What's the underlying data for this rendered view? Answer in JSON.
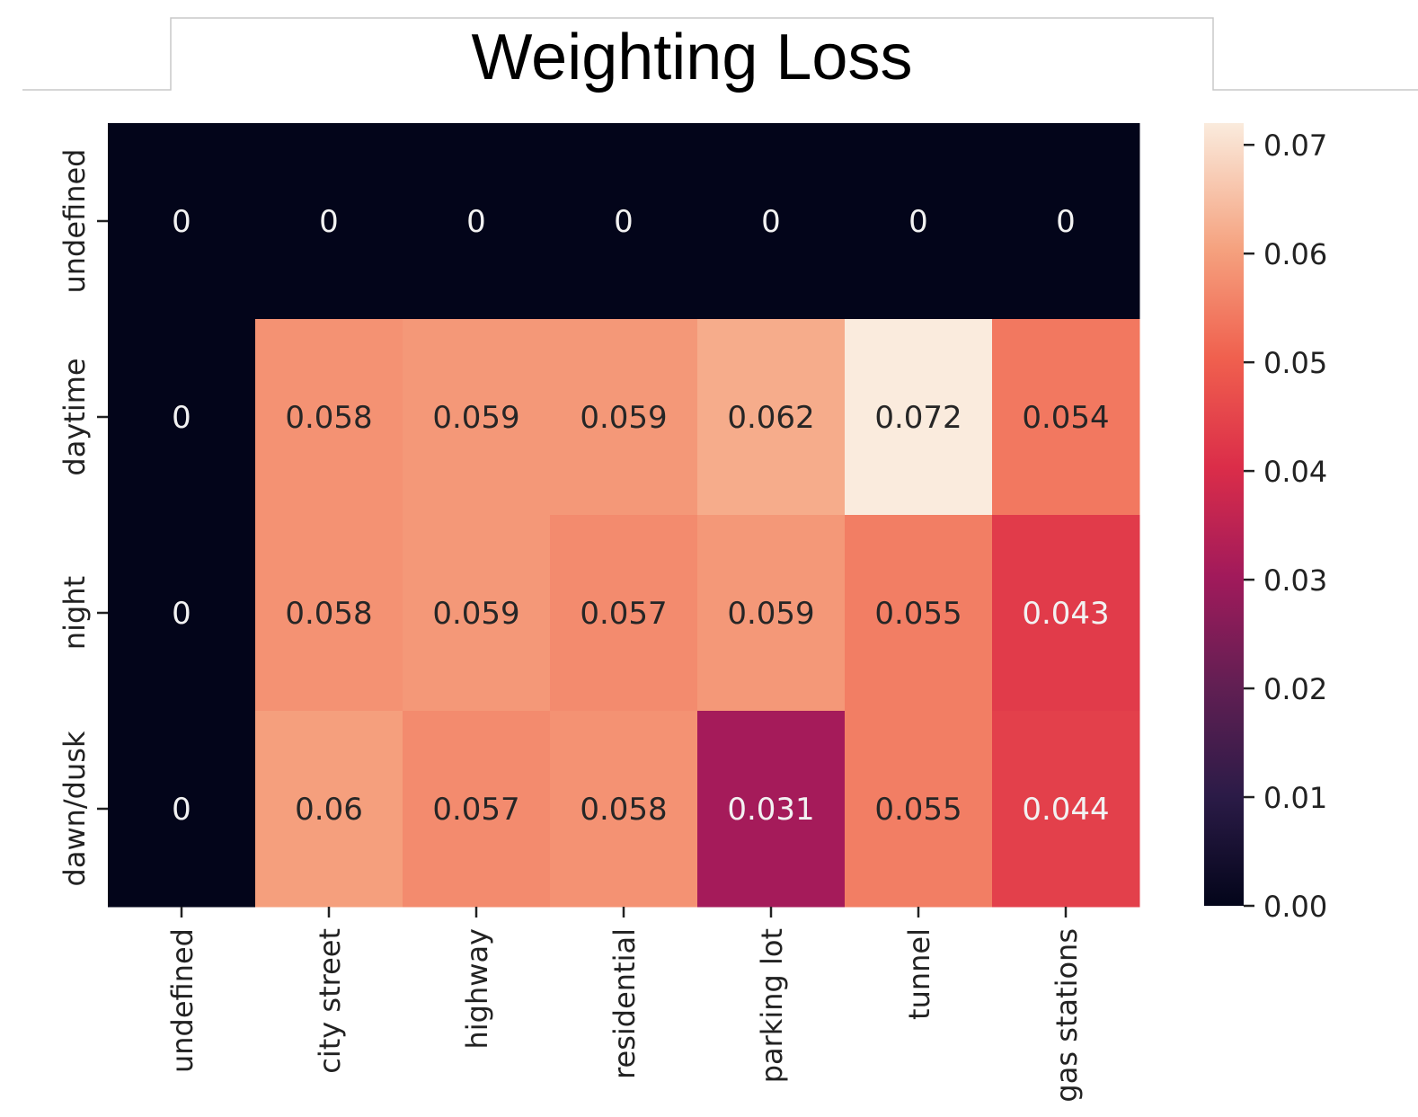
{
  "chart_data": {
    "type": "heatmap",
    "title": "Weighting Loss",
    "x_categories": [
      "undefined",
      "city street",
      "highway",
      "residential",
      "parking lot",
      "tunnel",
      "gas stations"
    ],
    "y_categories": [
      "undefined",
      "daytime",
      "night",
      "dawn/dusk"
    ],
    "values": [
      [
        0,
        0,
        0,
        0,
        0,
        0,
        0
      ],
      [
        0,
        0.058,
        0.059,
        0.059,
        0.062,
        0.072,
        0.054
      ],
      [
        0,
        0.058,
        0.059,
        0.057,
        0.059,
        0.055,
        0.043
      ],
      [
        0,
        0.06,
        0.057,
        0.058,
        0.031,
        0.055,
        0.044
      ]
    ],
    "value_labels": [
      [
        "0",
        "0",
        "0",
        "0",
        "0",
        "0",
        "0"
      ],
      [
        "0",
        "0.058",
        "0.059",
        "0.059",
        "0.062",
        "0.072",
        "0.054"
      ],
      [
        "0",
        "0.058",
        "0.059",
        "0.057",
        "0.059",
        "0.055",
        "0.043"
      ],
      [
        "0",
        "0.06",
        "0.057",
        "0.058",
        "0.031",
        "0.055",
        "0.044"
      ]
    ],
    "colorbar": {
      "range": [
        0,
        0.072
      ],
      "ticks": [
        "0.00",
        "0.01",
        "0.02",
        "0.03",
        "0.04",
        "0.05",
        "0.06",
        "0.07"
      ],
      "colormap": "rocket"
    },
    "grid": false
  }
}
